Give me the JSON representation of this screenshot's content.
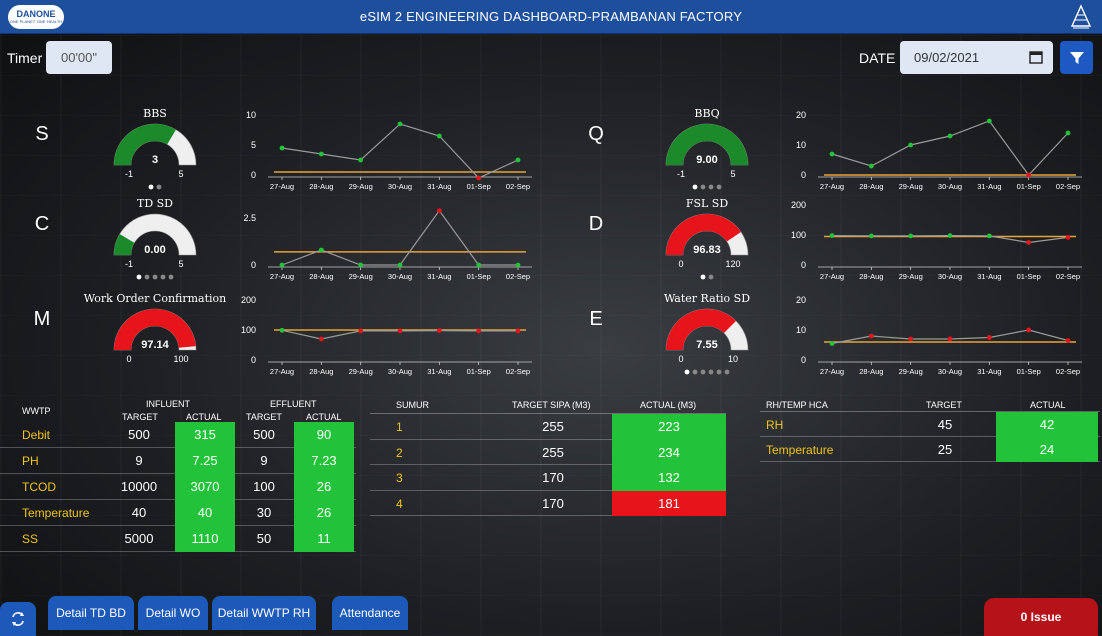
{
  "header": {
    "title": "eSIM 2 ENGINEERING DASHBOARD-PRAMBANAN FACTORY",
    "logo_text": "DANONE",
    "logo_sub": "ONE PLANET. ONE HEALTH"
  },
  "controls": {
    "timer_label": "Timer",
    "timer_value": "00'00\"",
    "date_label": "DATE",
    "date_value": "09/02/2021"
  },
  "kpis": [
    {
      "letter": "S",
      "gauge": {
        "title": "BBS",
        "value": "3",
        "min": "-1",
        "max": "5",
        "fraction": 0.67,
        "color": "#1b8a2a",
        "pager": [
          true,
          false
        ]
      },
      "chart": {
        "type": "line",
        "x": [
          "27-Aug",
          "28-Aug",
          "29-Aug",
          "30-Aug",
          "31-Aug",
          "01-Sep",
          "02-Sep"
        ],
        "values": [
          4.5,
          3.5,
          2.5,
          8.5,
          6.5,
          -0.5,
          2.5
        ],
        "target": 0.5,
        "yticks": [
          "10",
          "5",
          "0"
        ],
        "ylim": [
          0,
          10
        ],
        "point_colors": [
          "#22c23a",
          "#22c23a",
          "#22c23a",
          "#22c23a",
          "#22c23a",
          "#e8141c",
          "#22c23a"
        ]
      }
    },
    {
      "letter": "Q",
      "gauge": {
        "title": "BBQ",
        "value": "9.00",
        "min": "-1",
        "max": "5",
        "fraction": 1.0,
        "color": "#1b8a2a",
        "pager": [
          true,
          false,
          false,
          false
        ]
      },
      "chart": {
        "type": "line",
        "x": [
          "27-Aug",
          "28-Aug",
          "29-Aug",
          "30-Aug",
          "31-Aug",
          "01-Sep",
          "02-Sep"
        ],
        "values": [
          7,
          3,
          10,
          13,
          18,
          0,
          14
        ],
        "target": 0,
        "yticks": [
          "20",
          "10",
          "0"
        ],
        "ylim": [
          0,
          20
        ],
        "point_colors": [
          "#22c23a",
          "#22c23a",
          "#22c23a",
          "#22c23a",
          "#22c23a",
          "#e8141c",
          "#22c23a"
        ]
      }
    },
    {
      "letter": "C",
      "gauge": {
        "title": "TD SD",
        "value": "0.00",
        "min": "-1",
        "max": "5",
        "fraction": 0.17,
        "color": "#1b8a2a",
        "pager": [
          true,
          false,
          false,
          false,
          false
        ]
      },
      "chart": {
        "type": "line",
        "x": [
          "27-Aug",
          "28-Aug",
          "29-Aug",
          "30-Aug",
          "31-Aug",
          "01-Sep",
          "02-Sep"
        ],
        "values": [
          0,
          0.8,
          0,
          0,
          2.9,
          0,
          0
        ],
        "target": 0.7,
        "yticks": [
          "2.5",
          "0"
        ],
        "ylim": [
          0,
          3.2
        ],
        "point_colors": [
          "#22c23a",
          "#22c23a",
          "#22c23a",
          "#22c23a",
          "#e8141c",
          "#22c23a",
          "#22c23a"
        ]
      }
    },
    {
      "letter": "D",
      "gauge": {
        "title": "FSL SD",
        "value": "96.83",
        "min": "0",
        "max": "120",
        "fraction": 0.81,
        "color": "#e8141c",
        "pager": [
          true,
          false
        ]
      },
      "chart": {
        "type": "line",
        "x": [
          "27-Aug",
          "28-Aug",
          "29-Aug",
          "30-Aug",
          "31-Aug",
          "01-Sep",
          "02-Sep"
        ],
        "values": [
          98,
          97,
          97,
          98,
          97,
          75,
          92
        ],
        "target": 95,
        "yticks": [
          "200",
          "100",
          "0"
        ],
        "ylim": [
          0,
          200
        ],
        "point_colors": [
          "#22c23a",
          "#22c23a",
          "#22c23a",
          "#22c23a",
          "#22c23a",
          "#e8141c",
          "#e8141c"
        ]
      }
    },
    {
      "letter": "M",
      "gauge": {
        "title": "Work Order Confirmation",
        "value": "97.14",
        "min": "0",
        "max": "100",
        "fraction": 0.97,
        "color": "#e8141c",
        "pager": []
      },
      "chart": {
        "type": "line",
        "x": [
          "27-Aug",
          "28-Aug",
          "29-Aug",
          "30-Aug",
          "31-Aug",
          "01-Sep",
          "02-Sep"
        ],
        "values": [
          99,
          70,
          97,
          97,
          98,
          97,
          97
        ],
        "target": 100,
        "yticks": [
          "200",
          "100",
          "0"
        ],
        "ylim": [
          0,
          200
        ],
        "point_colors": [
          "#22c23a",
          "#e8141c",
          "#e8141c",
          "#e8141c",
          "#e8141c",
          "#e8141c",
          "#e8141c"
        ]
      }
    },
    {
      "letter": "E",
      "gauge": {
        "title": "Water Ratio SD",
        "value": "7.55",
        "min": "0",
        "max": "10",
        "fraction": 0.75,
        "color": "#e8141c",
        "pager": [
          true,
          false,
          false,
          false,
          false,
          false
        ]
      },
      "chart": {
        "type": "line",
        "x": [
          "27-Aug",
          "28-Aug",
          "29-Aug",
          "30-Aug",
          "31-Aug",
          "01-Sep",
          "02-Sep"
        ],
        "values": [
          5.5,
          8,
          7,
          7,
          7.5,
          10,
          6.5
        ],
        "target": 6,
        "yticks": [
          "20",
          "10",
          "0"
        ],
        "ylim": [
          0,
          20
        ],
        "point_colors": [
          "#22c23a",
          "#e8141c",
          "#e8141c",
          "#e8141c",
          "#e8141c",
          "#e8141c",
          "#e8141c"
        ]
      }
    }
  ],
  "wwtp": {
    "title": "WWTP",
    "influent": "INFLUENT",
    "effluent": "EFFLUENT",
    "target": "TARGET",
    "actual": "ACTUAL",
    "rows": [
      {
        "name": "Debit",
        "in_t": "500",
        "in_a": "315",
        "ef_t": "500",
        "ef_a": "90"
      },
      {
        "name": "PH",
        "in_t": "9",
        "in_a": "7.25",
        "ef_t": "9",
        "ef_a": "7.23"
      },
      {
        "name": "TCOD",
        "in_t": "10000",
        "in_a": "3070",
        "ef_t": "100",
        "ef_a": "26"
      },
      {
        "name": "Temperature",
        "in_t": "40",
        "in_a": "40",
        "ef_t": "30",
        "ef_a": "26"
      },
      {
        "name": "SS",
        "in_t": "5000",
        "in_a": "1110",
        "ef_t": "50",
        "ef_a": "11"
      }
    ]
  },
  "sumur": {
    "title": "SUMUR",
    "target": "TARGET SIPA (M3)",
    "actual": "ACTUAL (M3)",
    "rows": [
      {
        "name": "1",
        "target": "255",
        "actual": "223",
        "status": "green"
      },
      {
        "name": "2",
        "target": "255",
        "actual": "234",
        "status": "green"
      },
      {
        "name": "3",
        "target": "170",
        "actual": "132",
        "status": "green"
      },
      {
        "name": "4",
        "target": "170",
        "actual": "181",
        "status": "red"
      }
    ]
  },
  "rh": {
    "title": "RH/TEMP HCA",
    "target": "TARGET",
    "actual": "ACTUAL",
    "rows": [
      {
        "name": "RH",
        "target": "45",
        "actual": "42"
      },
      {
        "name": "Temperature",
        "target": "25",
        "actual": "24"
      }
    ]
  },
  "footer": {
    "buttons": [
      "Detail TD BD",
      "Detail WO",
      "Detail WWTP RH",
      "Attendance"
    ],
    "issue": "0 Issue"
  },
  "colors": {
    "header": "#1d4f9c",
    "green": "#22c23a",
    "red": "#e8141c",
    "target_line": "#e8a23a",
    "label_yellow": "#f0c419"
  }
}
